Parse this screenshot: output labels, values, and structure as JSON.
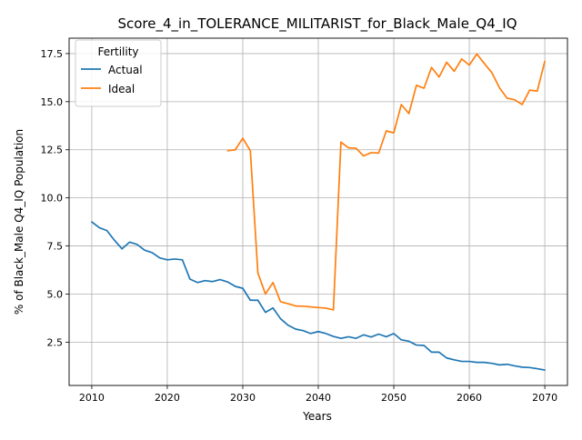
{
  "chart_data": {
    "type": "line",
    "title": "Score_4_in_TOLERANCE_MILITARIST_for_Black_Male_Q4_IQ",
    "xlabel": "Years",
    "ylabel": "% of Black_Male Q4_IQ Population",
    "xlim": [
      2007,
      2073
    ],
    "ylim": [
      0.25,
      18.3
    ],
    "x_ticks": [
      2010,
      2020,
      2030,
      2040,
      2050,
      2060,
      2070
    ],
    "x_tick_labels": [
      "2010",
      "2020",
      "2030",
      "2040",
      "2050",
      "2060",
      "2070"
    ],
    "y_ticks": [
      2.5,
      5.0,
      7.5,
      10.0,
      12.5,
      15.0,
      17.5
    ],
    "y_tick_labels": [
      "2.5",
      "5.0",
      "7.5",
      "10.0",
      "12.5",
      "15.0",
      "17.5"
    ],
    "grid": true,
    "legend": {
      "title": "Fertility",
      "placement": "upper left"
    },
    "series": [
      {
        "name": "Actual",
        "color": "#1f77b4",
        "x": [
          2010,
          2011,
          2012,
          2013,
          2014,
          2015,
          2016,
          2017,
          2018,
          2019,
          2020,
          2021,
          2022,
          2023,
          2024,
          2025,
          2026,
          2027,
          2028,
          2029,
          2030,
          2031,
          2032,
          2033,
          2034,
          2035,
          2036,
          2037,
          2038,
          2039,
          2040,
          2041,
          2042,
          2043,
          2044,
          2045,
          2046,
          2047,
          2048,
          2049,
          2050,
          2051,
          2052,
          2053,
          2054,
          2055,
          2056,
          2057,
          2058,
          2059,
          2060,
          2061,
          2062,
          2063,
          2064,
          2065,
          2066,
          2067,
          2068,
          2069,
          2070
        ],
        "y": [
          8.75,
          8.45,
          8.3,
          7.8,
          7.35,
          7.7,
          7.58,
          7.28,
          7.15,
          6.88,
          6.78,
          6.82,
          6.78,
          5.78,
          5.6,
          5.7,
          5.65,
          5.75,
          5.63,
          5.4,
          5.3,
          4.68,
          4.68,
          4.05,
          4.28,
          3.72,
          3.38,
          3.18,
          3.1,
          2.95,
          3.05,
          2.95,
          2.8,
          2.7,
          2.78,
          2.7,
          2.88,
          2.77,
          2.92,
          2.78,
          2.95,
          2.62,
          2.55,
          2.35,
          2.33,
          1.98,
          1.98,
          1.68,
          1.58,
          1.5,
          1.5,
          1.45,
          1.45,
          1.4,
          1.32,
          1.35,
          1.27,
          1.2,
          1.18,
          1.12,
          1.05
        ]
      },
      {
        "name": "Ideal",
        "color": "#ff7f0e",
        "x": [
          2028,
          2029,
          2030,
          2031,
          2032,
          2033,
          2034,
          2035,
          2036,
          2037,
          2038,
          2039,
          2040,
          2041,
          2042,
          2043,
          2044,
          2045,
          2046,
          2047,
          2048,
          2049,
          2050,
          2051,
          2052,
          2053,
          2054,
          2055,
          2056,
          2057,
          2058,
          2059,
          2060,
          2061,
          2062,
          2063,
          2064,
          2065,
          2066,
          2067,
          2068,
          2069,
          2070
        ],
        "y": [
          12.45,
          12.5,
          13.1,
          12.45,
          6.1,
          5.0,
          5.6,
          4.6,
          4.5,
          4.38,
          4.37,
          4.33,
          4.3,
          4.27,
          4.18,
          12.9,
          12.6,
          12.58,
          12.18,
          12.35,
          12.33,
          13.48,
          13.38,
          14.85,
          14.38,
          15.85,
          15.7,
          16.78,
          16.28,
          17.05,
          16.58,
          17.22,
          16.9,
          17.48,
          16.98,
          16.5,
          15.72,
          15.18,
          15.1,
          14.85,
          15.6,
          15.55,
          17.1
        ]
      }
    ]
  }
}
